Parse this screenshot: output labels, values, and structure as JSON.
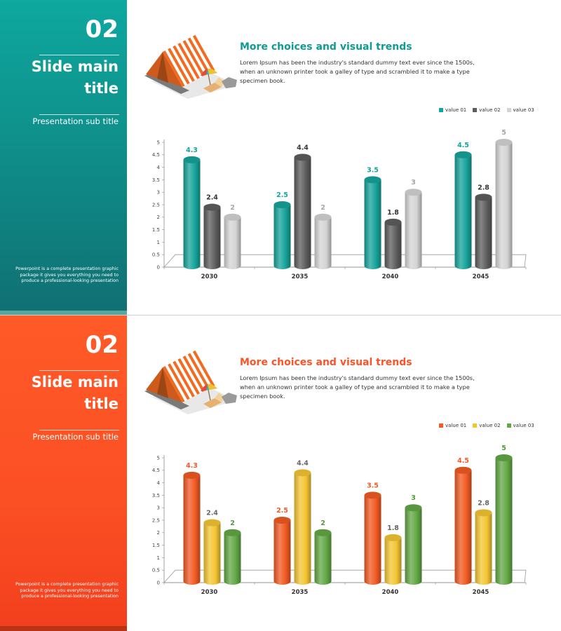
{
  "slides": [
    {
      "number": "02",
      "main_title": "Slide main title",
      "sub_title": "Presentation sub title",
      "description": "Powerpoint is a complete presentation graphic package it gives you everything you need to produce a professional-looking presentation",
      "heading": "More choices and visual trends",
      "body": "Lorem Ipsum has been the industry's standard dummy text ever since the 1500s, when an unknown printer took a galley of type and scrambled it to make a type specimen book.",
      "colors": {
        "theme": "#0f9c92",
        "series": [
          "#16a39a",
          "#5d5d5d",
          "#d4d4d4"
        ],
        "labels": [
          "#12a59c",
          "#333333",
          "#a6a6a6"
        ]
      }
    },
    {
      "number": "02",
      "main_title": "Slide main title",
      "sub_title": "Presentation sub title",
      "description": "Powerpoint is a complete presentation graphic package it gives you everything you need to produce a professional-looking presentation",
      "heading": "More choices and visual trends",
      "body": "Lorem Ipsum has been the industry's standard dummy text ever since the 1500s, when an unknown printer took a galley of type and scrambled it to make a type specimen book.",
      "colors": {
        "theme": "#ff5227",
        "series": [
          "#f25a23",
          "#f4c533",
          "#63a845"
        ],
        "labels": [
          "#f25a23",
          "#666666",
          "#4f9a38"
        ]
      }
    }
  ],
  "chart_data": [
    {
      "type": "bar",
      "categories": [
        "2030",
        "2035",
        "2040",
        "2045"
      ],
      "series": [
        {
          "name": "value 01",
          "values": [
            4.3,
            2.5,
            3.5,
            4.5
          ]
        },
        {
          "name": "value 02",
          "values": [
            2.4,
            4.4,
            1.8,
            2.8
          ]
        },
        {
          "name": "value 03",
          "values": [
            2,
            2,
            3,
            5
          ]
        }
      ],
      "ylim": [
        0,
        5
      ],
      "yticks": [
        "0",
        "0.5",
        "1",
        "1.5",
        "2",
        "2.5",
        "3",
        "3.5",
        "4",
        "4.5",
        "5"
      ],
      "legend": "top-right",
      "grid": false,
      "style": "3d-cylinder"
    },
    {
      "type": "bar",
      "categories": [
        "2030",
        "2035",
        "2040",
        "2045"
      ],
      "series": [
        {
          "name": "value 01",
          "values": [
            4.3,
            2.5,
            3.5,
            4.5
          ]
        },
        {
          "name": "value 02",
          "values": [
            2.4,
            4.4,
            1.8,
            2.8
          ]
        },
        {
          "name": "value 03",
          "values": [
            2,
            2,
            3,
            5
          ]
        }
      ],
      "ylim": [
        0,
        5
      ],
      "yticks": [
        "0",
        "0.5",
        "1",
        "1.5",
        "2",
        "2.5",
        "3",
        "3.5",
        "4",
        "4.5",
        "5"
      ],
      "legend": "top-right",
      "grid": false,
      "style": "3d-cylinder"
    }
  ]
}
